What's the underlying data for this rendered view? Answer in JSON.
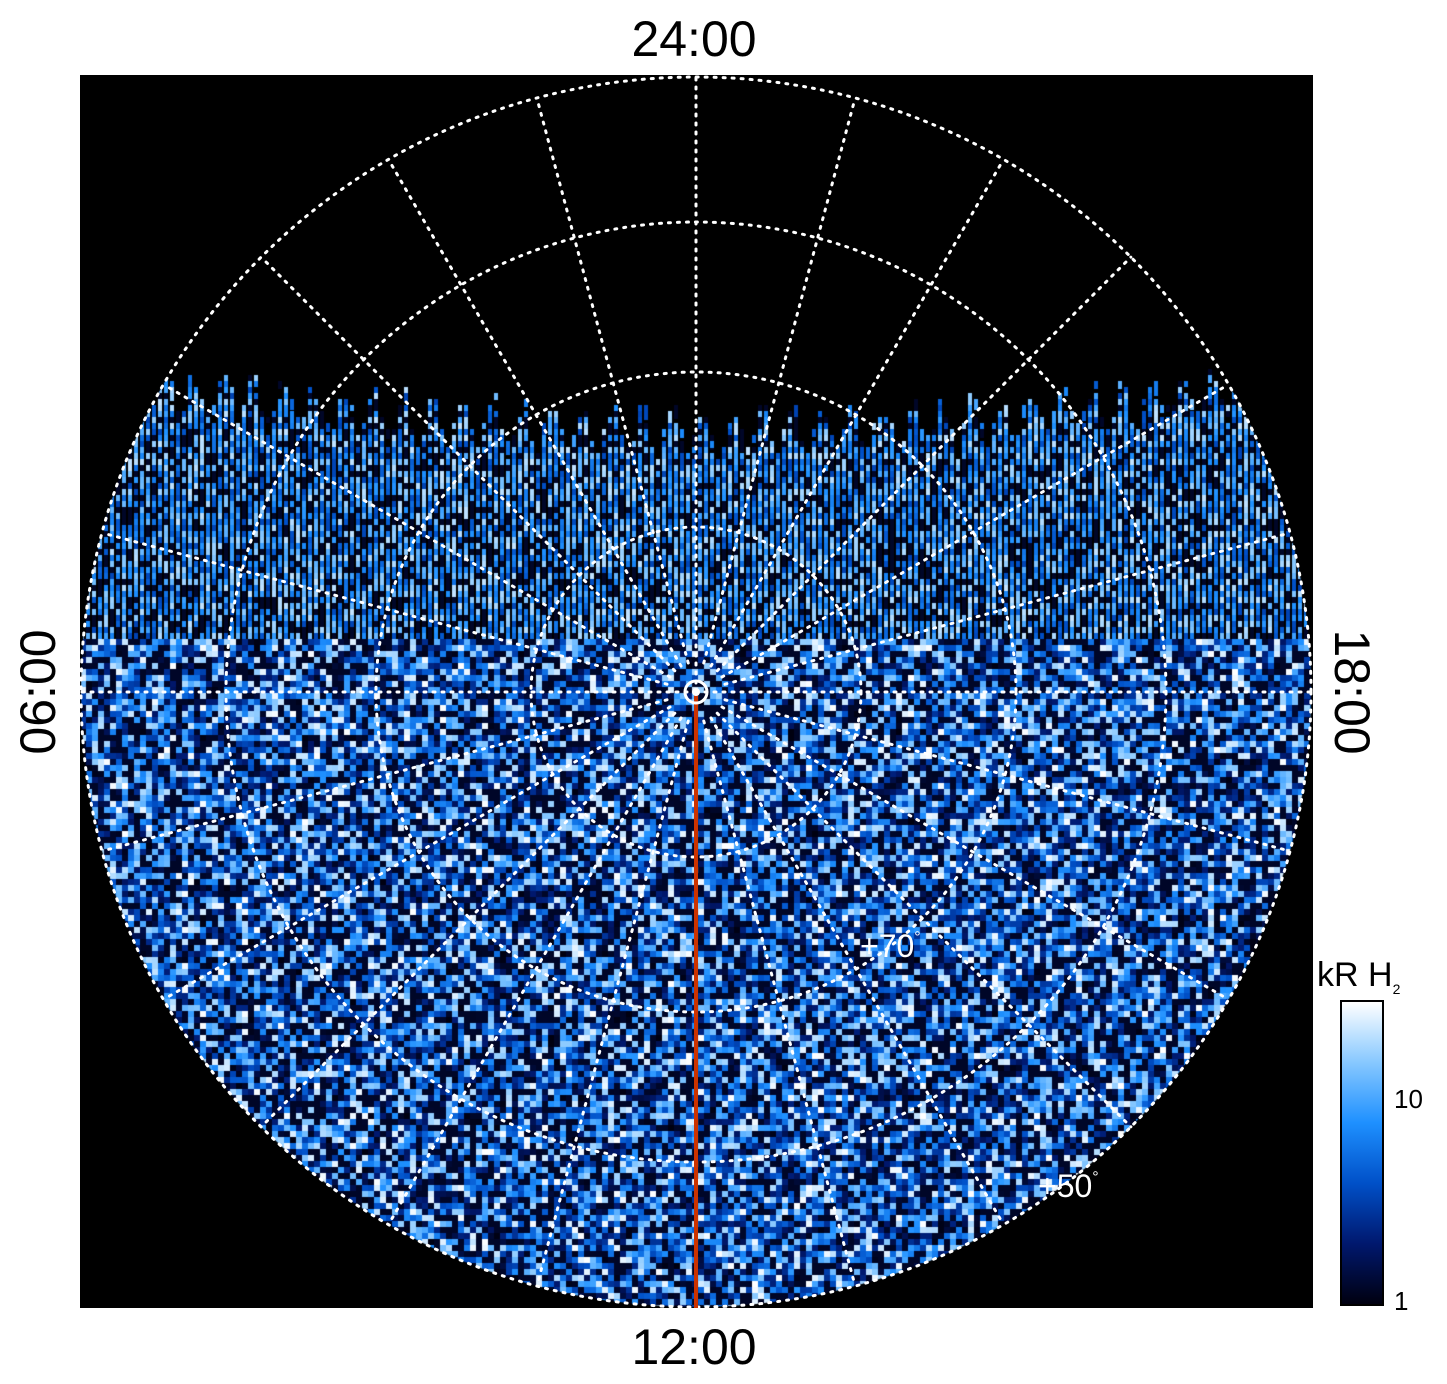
{
  "local_time_labels": {
    "top": "24:00",
    "bottom": "12:00",
    "left": "06:00",
    "right": "18:00"
  },
  "latitude_labels": [
    {
      "text": "+70",
      "unit": "°"
    },
    {
      "text": "+50",
      "unit": "°"
    }
  ],
  "colorbar": {
    "title_main": "kR H",
    "title_sub": "2",
    "ticks": [
      "10",
      "1"
    ],
    "scale": "log",
    "range": [
      1,
      20
    ],
    "colors": [
      "#000010",
      "#00186e",
      "#0050c8",
      "#1e90ff",
      "#87c8ff",
      "#ffffff"
    ]
  },
  "colors": {
    "background": "#000000",
    "grid": "#ffffff",
    "meridian_line": "#cc3300"
  }
}
